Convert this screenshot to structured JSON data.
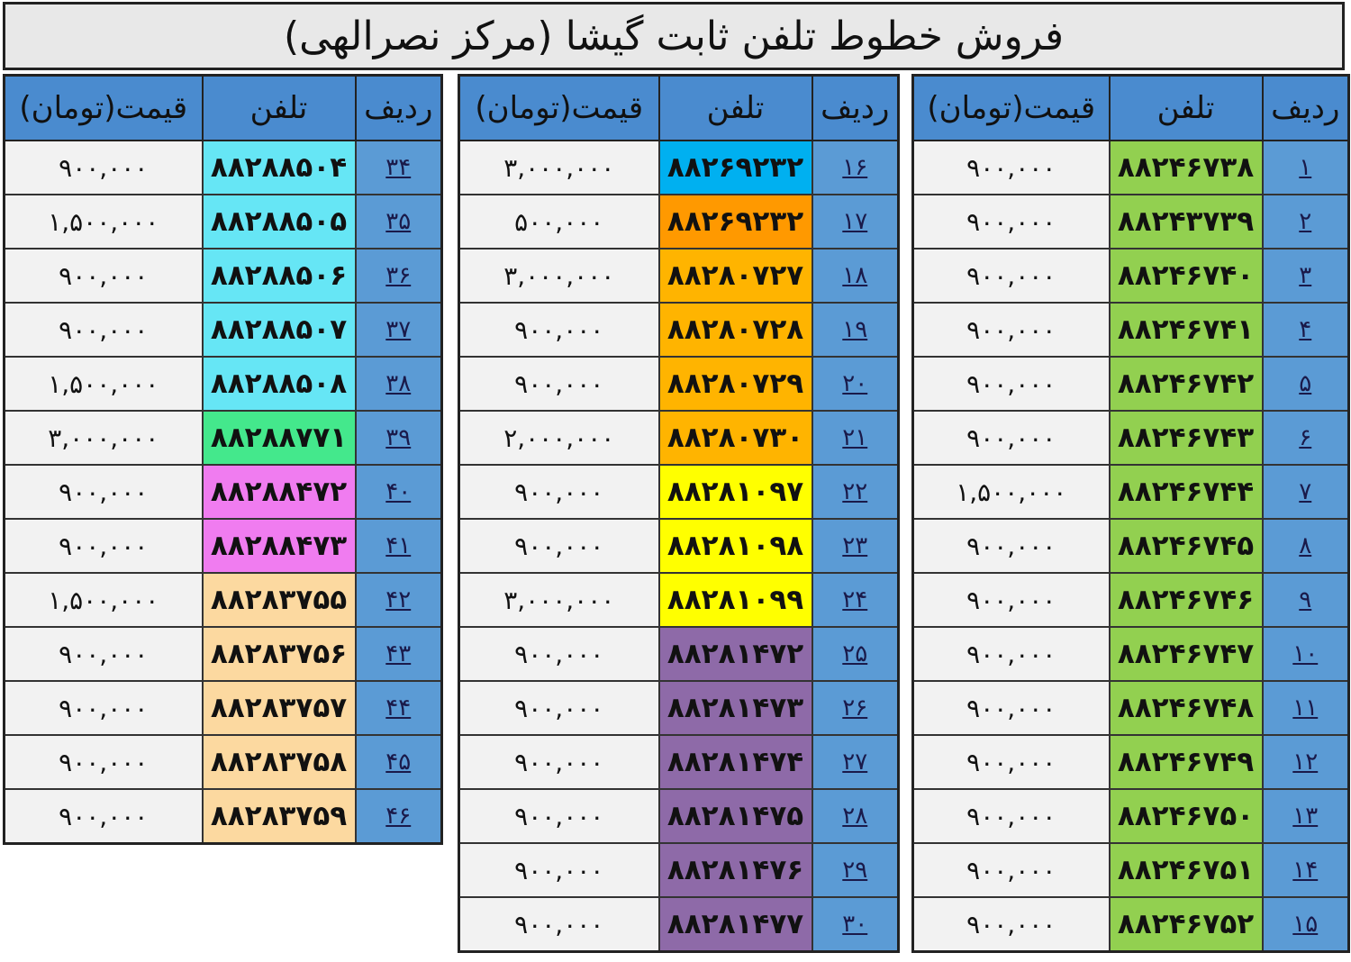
{
  "title": "فروش خطوط تلفن ثابت گیشا (مرکز نصرالهی)",
  "headers": {
    "index": "ردیف",
    "phone": "تلفن",
    "price": "قیمت(تومان)"
  },
  "tables": [
    {
      "rows": [
        {
          "i": "۱",
          "phone": "۸۸۲۴۶۷۳۸",
          "price": "۹۰۰,۰۰۰",
          "color": "#92d050"
        },
        {
          "i": "۲",
          "phone": "۸۸۲۴۳۷۳۹",
          "price": "۹۰۰,۰۰۰",
          "color": "#92d050"
        },
        {
          "i": "۳",
          "phone": "۸۸۲۴۶۷۴۰",
          "price": "۹۰۰,۰۰۰",
          "color": "#92d050"
        },
        {
          "i": "۴",
          "phone": "۸۸۲۴۶۷۴۱",
          "price": "۹۰۰,۰۰۰",
          "color": "#92d050"
        },
        {
          "i": "۵",
          "phone": "۸۸۲۴۶۷۴۲",
          "price": "۹۰۰,۰۰۰",
          "color": "#92d050"
        },
        {
          "i": "۶",
          "phone": "۸۸۲۴۶۷۴۳",
          "price": "۹۰۰,۰۰۰",
          "color": "#92d050"
        },
        {
          "i": "۷",
          "phone": "۸۸۲۴۶۷۴۴",
          "price": "۱,۵۰۰,۰۰۰",
          "color": "#92d050"
        },
        {
          "i": "۸",
          "phone": "۸۸۲۴۶۷۴۵",
          "price": "۹۰۰,۰۰۰",
          "color": "#92d050"
        },
        {
          "i": "۹",
          "phone": "۸۸۲۴۶۷۴۶",
          "price": "۹۰۰,۰۰۰",
          "color": "#92d050"
        },
        {
          "i": "۱۰",
          "phone": "۸۸۲۴۶۷۴۷",
          "price": "۹۰۰,۰۰۰",
          "color": "#92d050"
        },
        {
          "i": "۱۱",
          "phone": "۸۸۲۴۶۷۴۸",
          "price": "۹۰۰,۰۰۰",
          "color": "#92d050"
        },
        {
          "i": "۱۲",
          "phone": "۸۸۲۴۶۷۴۹",
          "price": "۹۰۰,۰۰۰",
          "color": "#92d050"
        },
        {
          "i": "۱۳",
          "phone": "۸۸۲۴۶۷۵۰",
          "price": "۹۰۰,۰۰۰",
          "color": "#92d050"
        },
        {
          "i": "۱۴",
          "phone": "۸۸۲۴۶۷۵۱",
          "price": "۹۰۰,۰۰۰",
          "color": "#92d050"
        },
        {
          "i": "۱۵",
          "phone": "۸۸۲۴۶۷۵۲",
          "price": "۹۰۰,۰۰۰",
          "color": "#92d050"
        }
      ]
    },
    {
      "rows": [
        {
          "i": "۱۶",
          "phone": "۸۸۲۶۹۲۳۲",
          "price": "۳,۰۰۰,۰۰۰",
          "color": "#00b0f0"
        },
        {
          "i": "۱۷",
          "phone": "۸۸۲۶۹۲۳۲",
          "price": "۵۰۰,۰۰۰",
          "color": "#ff9900"
        },
        {
          "i": "۱۸",
          "phone": "۸۸۲۸۰۷۲۷",
          "price": "۳,۰۰۰,۰۰۰",
          "color": "#ffb400"
        },
        {
          "i": "۱۹",
          "phone": "۸۸۲۸۰۷۲۸",
          "price": "۹۰۰,۰۰۰",
          "color": "#ffb400"
        },
        {
          "i": "۲۰",
          "phone": "۸۸۲۸۰۷۲۹",
          "price": "۹۰۰,۰۰۰",
          "color": "#ffb400"
        },
        {
          "i": "۲۱",
          "phone": "۸۸۲۸۰۷۳۰",
          "price": "۲,۰۰۰,۰۰۰",
          "color": "#ffb400"
        },
        {
          "i": "۲۲",
          "phone": "۸۸۲۸۱۰۹۷",
          "price": "۹۰۰,۰۰۰",
          "color": "#ffff00"
        },
        {
          "i": "۲۳",
          "phone": "۸۸۲۸۱۰۹۸",
          "price": "۹۰۰,۰۰۰",
          "color": "#ffff00"
        },
        {
          "i": "۲۴",
          "phone": "۸۸۲۸۱۰۹۹",
          "price": "۳,۰۰۰,۰۰۰",
          "color": "#ffff00"
        },
        {
          "i": "۲۵",
          "phone": "۸۸۲۸۱۴۷۲",
          "price": "۹۰۰,۰۰۰",
          "color": "#8e6aa8"
        },
        {
          "i": "۲۶",
          "phone": "۸۸۲۸۱۴۷۳",
          "price": "۹۰۰,۰۰۰",
          "color": "#8e6aa8"
        },
        {
          "i": "۲۷",
          "phone": "۸۸۲۸۱۴۷۴",
          "price": "۹۰۰,۰۰۰",
          "color": "#8e6aa8"
        },
        {
          "i": "۲۸",
          "phone": "۸۸۲۸۱۴۷۵",
          "price": "۹۰۰,۰۰۰",
          "color": "#8e6aa8"
        },
        {
          "i": "۲۹",
          "phone": "۸۸۲۸۱۴۷۶",
          "price": "۹۰۰,۰۰۰",
          "color": "#8e6aa8"
        },
        {
          "i": "۳۰",
          "phone": "۸۸۲۸۱۴۷۷",
          "price": "۹۰۰,۰۰۰",
          "color": "#8e6aa8"
        }
      ]
    },
    {
      "rows": [
        {
          "i": "۳۴",
          "phone": "۸۸۲۸۸۵۰۴",
          "price": "۹۰۰,۰۰۰",
          "color": "#66e6f5"
        },
        {
          "i": "۳۵",
          "phone": "۸۸۲۸۸۵۰۵",
          "price": "۱,۵۰۰,۰۰۰",
          "color": "#66e6f5"
        },
        {
          "i": "۳۶",
          "phone": "۸۸۲۸۸۵۰۶",
          "price": "۹۰۰,۰۰۰",
          "color": "#66e6f5"
        },
        {
          "i": "۳۷",
          "phone": "۸۸۲۸۸۵۰۷",
          "price": "۹۰۰,۰۰۰",
          "color": "#66e6f5"
        },
        {
          "i": "۳۸",
          "phone": "۸۸۲۸۸۵۰۸",
          "price": "۱,۵۰۰,۰۰۰",
          "color": "#66e6f5"
        },
        {
          "i": "۳۹",
          "phone": "۸۸۲۸۸۷۷۱",
          "price": "۳,۰۰۰,۰۰۰",
          "color": "#44e88c"
        },
        {
          "i": "۴۰",
          "phone": "۸۸۲۸۸۴۷۲",
          "price": "۹۰۰,۰۰۰",
          "color": "#f07cf0"
        },
        {
          "i": "۴۱",
          "phone": "۸۸۲۸۸۴۷۳",
          "price": "۹۰۰,۰۰۰",
          "color": "#f07cf0"
        },
        {
          "i": "۴۲",
          "phone": "۸۸۲۸۳۷۵۵",
          "price": "۱,۵۰۰,۰۰۰",
          "color": "#fcd9a0"
        },
        {
          "i": "۴۳",
          "phone": "۸۸۲۸۳۷۵۶",
          "price": "۹۰۰,۰۰۰",
          "color": "#fcd9a0"
        },
        {
          "i": "۴۴",
          "phone": "۸۸۲۸۳۷۵۷",
          "price": "۹۰۰,۰۰۰",
          "color": "#fcd9a0"
        },
        {
          "i": "۴۵",
          "phone": "۸۸۲۸۳۷۵۸",
          "price": "۹۰۰,۰۰۰",
          "color": "#fcd9a0"
        },
        {
          "i": "۴۶",
          "phone": "۸۸۲۸۳۷۵۹",
          "price": "۹۰۰,۰۰۰",
          "color": "#fcd9a0"
        }
      ]
    }
  ]
}
